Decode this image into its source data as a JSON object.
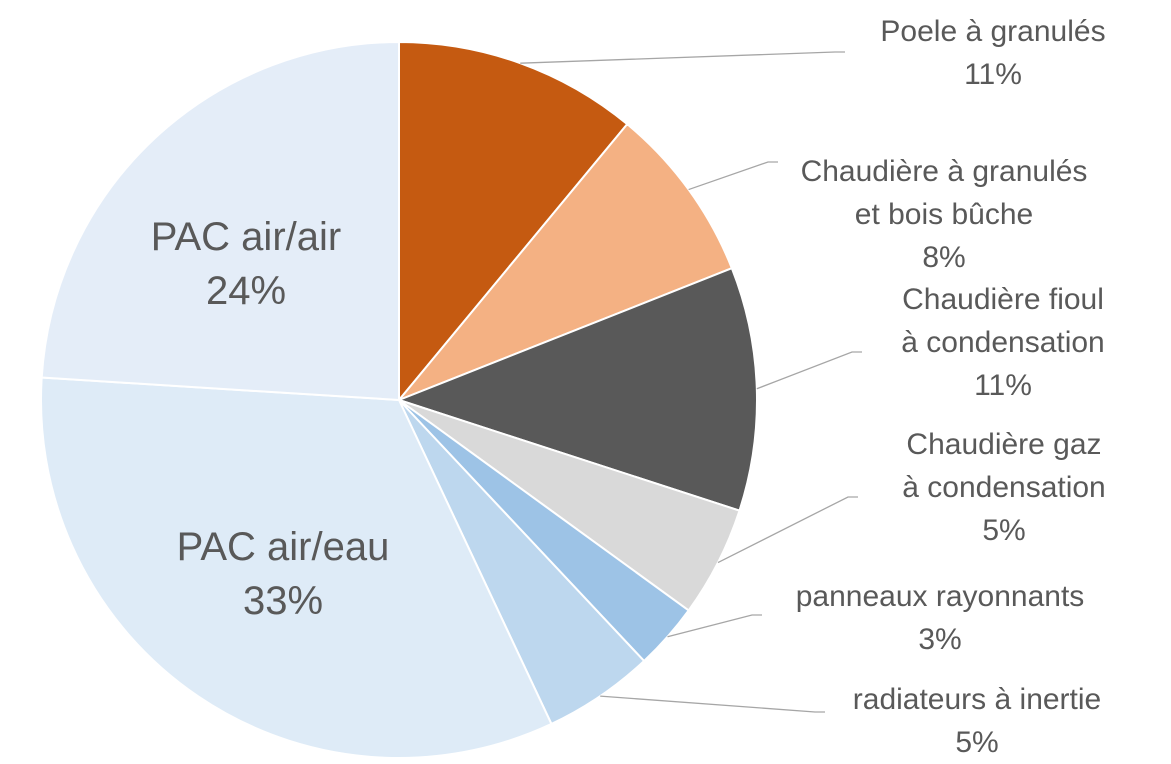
{
  "chart_data": {
    "type": "pie",
    "categories": [
      "Poele à granulés",
      "Chaudière à granulés\net bois bûche",
      "Chaudière fioul\nà condensation",
      "Chaudière gaz\nà condensation",
      "panneaux rayonnants",
      "radiateurs à inertie",
      "PAC air/eau",
      "PAC air/air"
    ],
    "values": [
      11,
      8,
      11,
      5,
      3,
      5,
      33,
      24
    ],
    "value_labels": [
      "11%",
      "8%",
      "11%",
      "5%",
      "3%",
      "5%",
      "33%",
      "24%"
    ],
    "colors": [
      "#c55a11",
      "#f4b183",
      "#595959",
      "#d9d9d9",
      "#9dc3e6",
      "#bdd7ee",
      "#deebf7",
      "#e4edf8"
    ]
  }
}
